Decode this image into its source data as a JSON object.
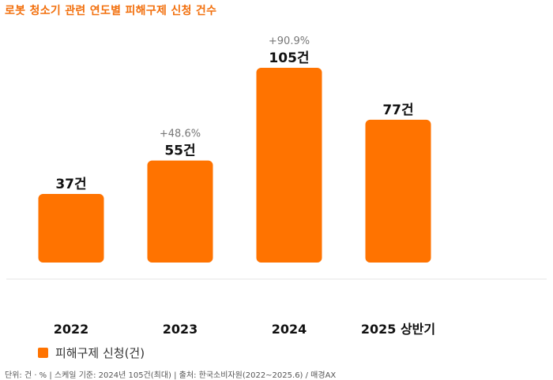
{
  "title": "로봇 청소기 관련 연도별 피해구제 신청 건수",
  "legend_label": "피해구제 신청(건)",
  "footer": "단위: 건 · % | 스케일 기준: 2024년 105건(최대) | 출처: 한국소비자원(2022~2025.6) / 매경AX",
  "colors": {
    "bar": "#ff7300",
    "title": "#f26f0c",
    "change_label": "#777777",
    "value_label": "#111111"
  },
  "chart_data": {
    "type": "bar",
    "title": "로봇 청소기 관련 연도별 피해구제 신청 건수",
    "categories": [
      "2022",
      "2023",
      "2024",
      "2025 상반기"
    ],
    "series": [
      {
        "name": "피해구제 신청(건)",
        "values": [
          37,
          55,
          105,
          77
        ]
      }
    ],
    "value_labels": [
      "37건",
      "55건",
      "105건",
      "77건"
    ],
    "change_labels": [
      "",
      "+48.6%",
      "+90.9%",
      ""
    ],
    "ylim": [
      0,
      105
    ],
    "grid": false,
    "legend_position": "bottom-left"
  }
}
